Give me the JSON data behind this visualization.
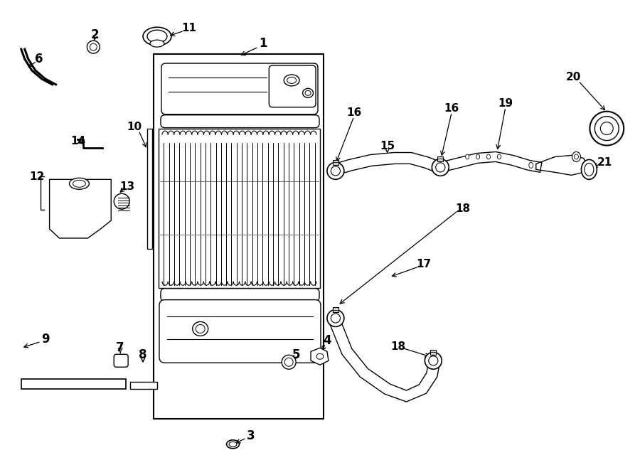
{
  "bg_color": "#ffffff",
  "figsize": [
    9.0,
    6.61
  ],
  "dpi": 100
}
